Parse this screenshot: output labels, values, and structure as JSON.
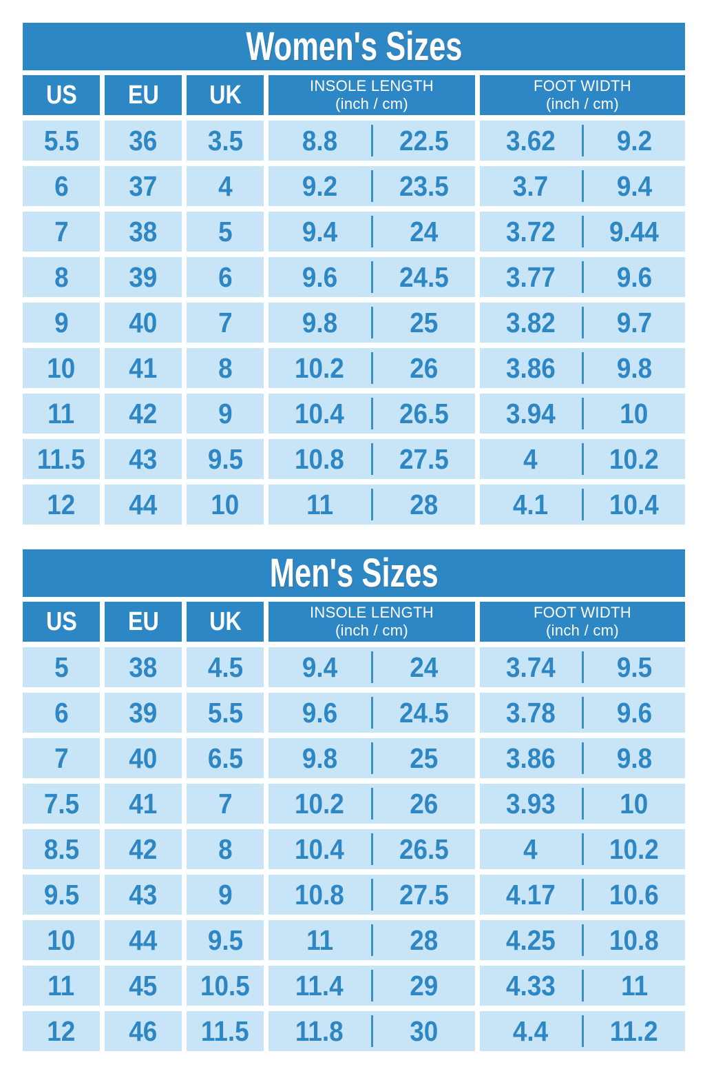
{
  "colors": {
    "primary_blue": "#2D87C4",
    "light_blue": "#C8E5F7",
    "text_blue": "#2E86C2",
    "divider_blue": "#3E8FC6",
    "page_bg": "#FFFFFF"
  },
  "headers": {
    "us": "US",
    "eu": "EU",
    "uk": "UK",
    "insole_title": "INSOLE LENGTH",
    "insole_unit": "(inch / cm)",
    "footwidth_title": "FOOT WIDTH",
    "footwidth_unit": "(inch / cm)"
  },
  "tables": [
    {
      "title": "Women's Sizes",
      "rows": [
        {
          "us": "5.5",
          "eu": "36",
          "uk": "3.5",
          "insole_in": "8.8",
          "insole_cm": "22.5",
          "width_in": "3.62",
          "width_cm": "9.2"
        },
        {
          "us": "6",
          "eu": "37",
          "uk": "4",
          "insole_in": "9.2",
          "insole_cm": "23.5",
          "width_in": "3.7",
          "width_cm": "9.4"
        },
        {
          "us": "7",
          "eu": "38",
          "uk": "5",
          "insole_in": "9.4",
          "insole_cm": "24",
          "width_in": "3.72",
          "width_cm": "9.44"
        },
        {
          "us": "8",
          "eu": "39",
          "uk": "6",
          "insole_in": "9.6",
          "insole_cm": "24.5",
          "width_in": "3.77",
          "width_cm": "9.6"
        },
        {
          "us": "9",
          "eu": "40",
          "uk": "7",
          "insole_in": "9.8",
          "insole_cm": "25",
          "width_in": "3.82",
          "width_cm": "9.7"
        },
        {
          "us": "10",
          "eu": "41",
          "uk": "8",
          "insole_in": "10.2",
          "insole_cm": "26",
          "width_in": "3.86",
          "width_cm": "9.8"
        },
        {
          "us": "11",
          "eu": "42",
          "uk": "9",
          "insole_in": "10.4",
          "insole_cm": "26.5",
          "width_in": "3.94",
          "width_cm": "10"
        },
        {
          "us": "11.5",
          "eu": "43",
          "uk": "9.5",
          "insole_in": "10.8",
          "insole_cm": "27.5",
          "width_in": "4",
          "width_cm": "10.2"
        },
        {
          "us": "12",
          "eu": "44",
          "uk": "10",
          "insole_in": "11",
          "insole_cm": "28",
          "width_in": "4.1",
          "width_cm": "10.4"
        }
      ]
    },
    {
      "title": "Men's Sizes",
      "rows": [
        {
          "us": "5",
          "eu": "38",
          "uk": "4.5",
          "insole_in": "9.4",
          "insole_cm": "24",
          "width_in": "3.74",
          "width_cm": "9.5"
        },
        {
          "us": "6",
          "eu": "39",
          "uk": "5.5",
          "insole_in": "9.6",
          "insole_cm": "24.5",
          "width_in": "3.78",
          "width_cm": "9.6"
        },
        {
          "us": "7",
          "eu": "40",
          "uk": "6.5",
          "insole_in": "9.8",
          "insole_cm": "25",
          "width_in": "3.86",
          "width_cm": "9.8"
        },
        {
          "us": "7.5",
          "eu": "41",
          "uk": "7",
          "insole_in": "10.2",
          "insole_cm": "26",
          "width_in": "3.93",
          "width_cm": "10"
        },
        {
          "us": "8.5",
          "eu": "42",
          "uk": "8",
          "insole_in": "10.4",
          "insole_cm": "26.5",
          "width_in": "4",
          "width_cm": "10.2"
        },
        {
          "us": "9.5",
          "eu": "43",
          "uk": "9",
          "insole_in": "10.8",
          "insole_cm": "27.5",
          "width_in": "4.17",
          "width_cm": "10.6"
        },
        {
          "us": "10",
          "eu": "44",
          "uk": "9.5",
          "insole_in": "11",
          "insole_cm": "28",
          "width_in": "4.25",
          "width_cm": "10.8"
        },
        {
          "us": "11",
          "eu": "45",
          "uk": "10.5",
          "insole_in": "11.4",
          "insole_cm": "29",
          "width_in": "4.33",
          "width_cm": "11"
        },
        {
          "us": "12",
          "eu": "46",
          "uk": "11.5",
          "insole_in": "11.8",
          "insole_cm": "30",
          "width_in": "4.4",
          "width_cm": "11.2"
        }
      ]
    }
  ]
}
